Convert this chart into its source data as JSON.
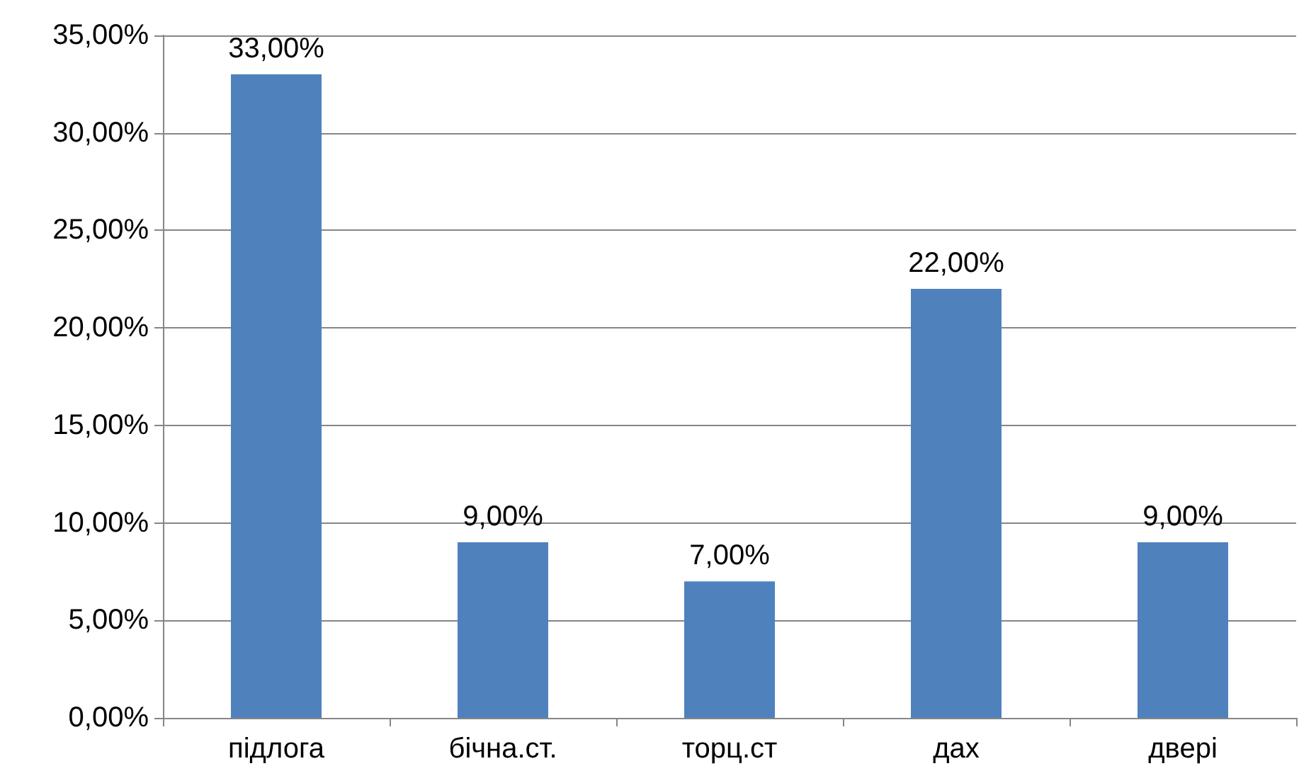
{
  "chart_data": {
    "type": "bar",
    "categories": [
      "підлога",
      "бічна.ст.",
      "торц.ст",
      "дах",
      "двері"
    ],
    "values": [
      33,
      9,
      7,
      22,
      9
    ],
    "value_labels": [
      "33,00%",
      "9,00%",
      "7,00%",
      "22,00%",
      "9,00%"
    ],
    "color": "#4f81bd",
    "ylim": [
      0,
      35
    ],
    "yticks": [
      {
        "value": 0,
        "label": "0,00%"
      },
      {
        "value": 5,
        "label": "5,00%"
      },
      {
        "value": 10,
        "label": "10,00%"
      },
      {
        "value": 15,
        "label": "15,00%"
      },
      {
        "value": 20,
        "label": "20,00%"
      },
      {
        "value": 25,
        "label": "25,00%"
      },
      {
        "value": 30,
        "label": "30,00%"
      },
      {
        "value": 35,
        "label": "35,00%"
      }
    ],
    "grid": "y"
  }
}
